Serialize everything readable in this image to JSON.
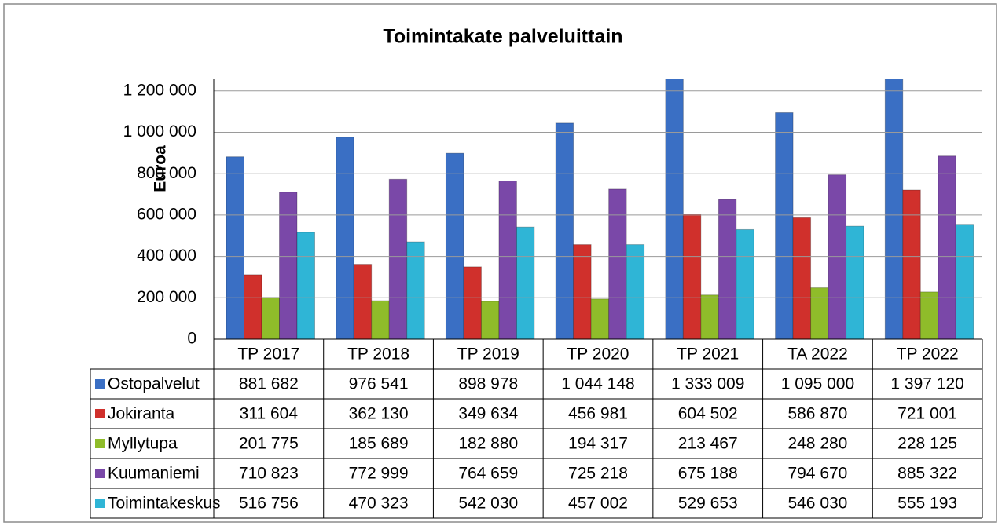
{
  "chart_data": {
    "type": "bar",
    "title": "Toimintakate palveluittain",
    "y_label": "Euroa",
    "categories": [
      "TP 2017",
      "TP 2018",
      "TP 2019",
      "TP 2020",
      "TP 2021",
      "TA 2022",
      "TP 2022"
    ],
    "series": [
      {
        "name": "Ostopalvelut",
        "color": "#3a6fc4",
        "values": [
          881682,
          976541,
          898978,
          1044148,
          1333009,
          1095000,
          1397120
        ],
        "value_labels": [
          "881 682",
          "976 541",
          "898 978",
          "1 044 148",
          "1 333 009",
          "1 095 000",
          "1 397 120"
        ]
      },
      {
        "name": "Jokiranta",
        "color": "#d0302c",
        "values": [
          311604,
          362130,
          349634,
          456981,
          604502,
          586870,
          721001
        ],
        "value_labels": [
          "311 604",
          "362 130",
          "349 634",
          "456 981",
          "604 502",
          "586 870",
          "721 001"
        ]
      },
      {
        "name": "Myllytupa",
        "color": "#8fbc2a",
        "values": [
          201775,
          185689,
          182880,
          194317,
          213467,
          248280,
          228125
        ],
        "value_labels": [
          "201 775",
          "185 689",
          "182 880",
          "194 317",
          "213 467",
          "248 280",
          "228 125"
        ]
      },
      {
        "name": "Kuumaniemi",
        "color": "#7a48a8",
        "values": [
          710823,
          772999,
          764659,
          725218,
          675188,
          794670,
          885322
        ],
        "value_labels": [
          "710 823",
          "772 999",
          "764 659",
          "725 218",
          "675 188",
          "794 670",
          "885 322"
        ]
      },
      {
        "name": "Toimintakeskus",
        "color": "#2fb5d6",
        "values": [
          516756,
          470323,
          542030,
          457002,
          529653,
          546030,
          555193
        ],
        "value_labels": [
          "516 756",
          "470 323",
          "542 030",
          "457 002",
          "529 653",
          "546 030",
          "555 193"
        ]
      }
    ],
    "ylim": [
      0,
      1260000
    ],
    "yticks": [
      0,
      {
        "value": 200000,
        "label": "200 000"
      },
      {
        "value": 400000,
        "label": "400 000"
      },
      {
        "value": 600000,
        "label": "600 000"
      },
      {
        "value": 800000,
        "label": "800 000"
      },
      {
        "value": 1000000,
        "label": "1 000 000"
      },
      {
        "value": 1200000,
        "label": "1 200 000"
      }
    ],
    "grid": true
  }
}
